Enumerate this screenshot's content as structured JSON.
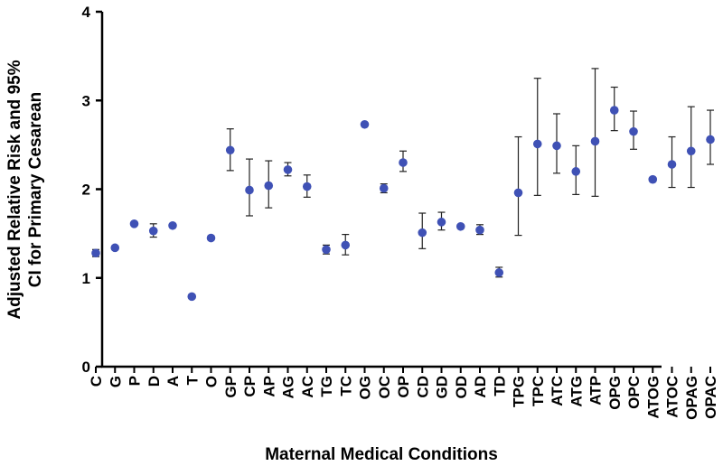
{
  "chart_data": {
    "type": "scatter",
    "title": "",
    "xlabel": "Maternal Medical Conditions",
    "ylabel_line1": "Adjusted  Relative Risk and 95%",
    "ylabel_line2": "CI for Primary Cesarean",
    "ylim": [
      0,
      4
    ],
    "yticks": [
      "0",
      "1",
      "2",
      "3",
      "4"
    ],
    "marker_color": "#3f51b5",
    "errorbar_color": "#222222",
    "categories": [
      "C",
      "G",
      "P",
      "D",
      "A",
      "T",
      "O",
      "GP",
      "CP",
      "AP",
      "AG",
      "AC",
      "TG",
      "TC",
      "OG",
      "OC",
      "OP",
      "CD",
      "GD",
      "OD",
      "AD",
      "TD",
      "TPG",
      "TPC",
      "ATC",
      "ATG",
      "ATP",
      "OPG",
      "OPC",
      "ATOG",
      "ATOC",
      "OPAG",
      "OPAC"
    ],
    "values": [
      1.28,
      1.34,
      1.61,
      1.53,
      1.59,
      0.79,
      1.45,
      2.44,
      1.99,
      2.04,
      2.22,
      2.03,
      1.32,
      1.37,
      2.73,
      2.01,
      2.3,
      1.51,
      1.63,
      1.58,
      1.54,
      1.06,
      1.96,
      2.51,
      2.49,
      2.2,
      2.54,
      2.89,
      2.65,
      2.11,
      2.28,
      2.43,
      2.56
    ],
    "ci_low": [
      1.24,
      1.32,
      1.59,
      1.46,
      1.57,
      0.77,
      1.44,
      2.21,
      1.7,
      1.79,
      2.15,
      1.91,
      1.27,
      1.26,
      2.71,
      1.96,
      2.2,
      1.33,
      1.54,
      1.56,
      1.49,
      1.01,
      1.48,
      1.93,
      2.18,
      1.94,
      1.92,
      2.66,
      2.45,
      2.09,
      2.02,
      2.02,
      2.28
    ],
    "ci_high": [
      1.32,
      1.36,
      1.63,
      1.61,
      1.61,
      0.81,
      1.46,
      2.68,
      2.34,
      2.32,
      2.3,
      2.16,
      1.37,
      1.49,
      2.75,
      2.06,
      2.43,
      1.73,
      1.74,
      1.6,
      1.6,
      1.12,
      2.59,
      3.25,
      2.85,
      2.49,
      3.36,
      3.15,
      2.88,
      2.13,
      2.59,
      2.93,
      2.89
    ]
  }
}
